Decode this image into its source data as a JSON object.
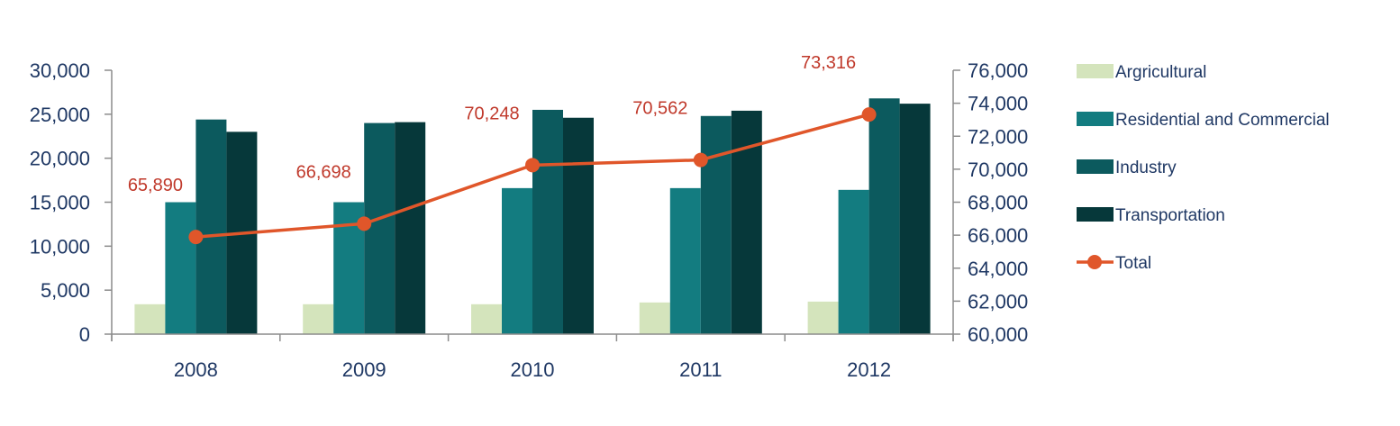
{
  "chart_data": {
    "type": "bar",
    "categories": [
      "2008",
      "2009",
      "2010",
      "2011",
      "2012"
    ],
    "y_left": {
      "ticks": [
        "0",
        "5,000",
        "10,000",
        "15,000",
        "20,000",
        "25,000",
        "30,000"
      ],
      "ylim": [
        0,
        30000
      ]
    },
    "y_right": {
      "ticks": [
        "60,000",
        "62,000",
        "64,000",
        "66,000",
        "68,000",
        "70,000",
        "72,000",
        "74,000",
        "76,000"
      ],
      "ylim": [
        60000,
        76000
      ]
    },
    "series": [
      {
        "name": "Argricultural",
        "type": "bar",
        "axis": "left",
        "color": "#d4e4bc",
        "values": [
          3400,
          3400,
          3400,
          3600,
          3700
        ]
      },
      {
        "name": "Residential and Commercial",
        "type": "bar",
        "axis": "left",
        "color": "#137c80",
        "values": [
          15000,
          15000,
          16600,
          16600,
          16400
        ]
      },
      {
        "name": "Industry",
        "type": "bar",
        "axis": "left",
        "color": "#0c5a5e",
        "values": [
          24400,
          24000,
          25500,
          24800,
          26800
        ]
      },
      {
        "name": "Transportation",
        "type": "bar",
        "axis": "left",
        "color": "#06383a",
        "values": [
          23000,
          24100,
          24600,
          25400,
          26200
        ]
      },
      {
        "name": "Total",
        "type": "line",
        "axis": "right",
        "color": "#e0562a",
        "values": [
          65890,
          66698,
          70248,
          70562,
          73316
        ],
        "labels": [
          "65,890",
          "66,698",
          "70,248",
          "70,562",
          "73,316"
        ]
      }
    ],
    "legend_position": "right",
    "grid": false
  }
}
